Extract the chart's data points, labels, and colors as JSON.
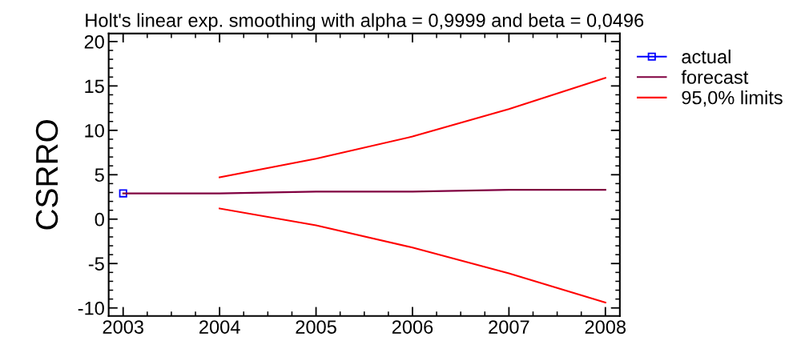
{
  "chart_data": {
    "type": "line",
    "title": "Holt's linear exp. smoothing with alpha = 0,9999 and beta = 0,0496",
    "ylabel": "CSRRO",
    "x": [
      2003,
      2004,
      2005,
      2006,
      2007,
      2008
    ],
    "series": [
      {
        "name": "actual",
        "color": "#0000ff",
        "marker": "square",
        "values": [
          2.9,
          null,
          null,
          null,
          null,
          null
        ]
      },
      {
        "name": "forecast",
        "color": "#800040",
        "marker": "none",
        "values": [
          2.9,
          2.9,
          3.1,
          3.1,
          3.3,
          3.3
        ]
      },
      {
        "name": "95,0% limits",
        "color": "#ff0000",
        "marker": "none",
        "values": [
          null,
          4.7,
          6.8,
          9.3,
          12.4,
          15.9
        ]
      },
      {
        "color": "#ff0000",
        "marker": "none",
        "values": [
          null,
          1.2,
          -0.7,
          -3.2,
          -6.1,
          -9.4
        ]
      }
    ],
    "xlim": [
      2002.85,
      2008.15
    ],
    "ylim": [
      -10.9,
      20.9
    ],
    "xticks": [
      2003,
      2004,
      2005,
      2006,
      2007,
      2008
    ],
    "yticks": [
      -10,
      -5,
      0,
      5,
      10,
      15,
      20
    ],
    "grid": false,
    "legend": "right",
    "line_style": "solid"
  }
}
